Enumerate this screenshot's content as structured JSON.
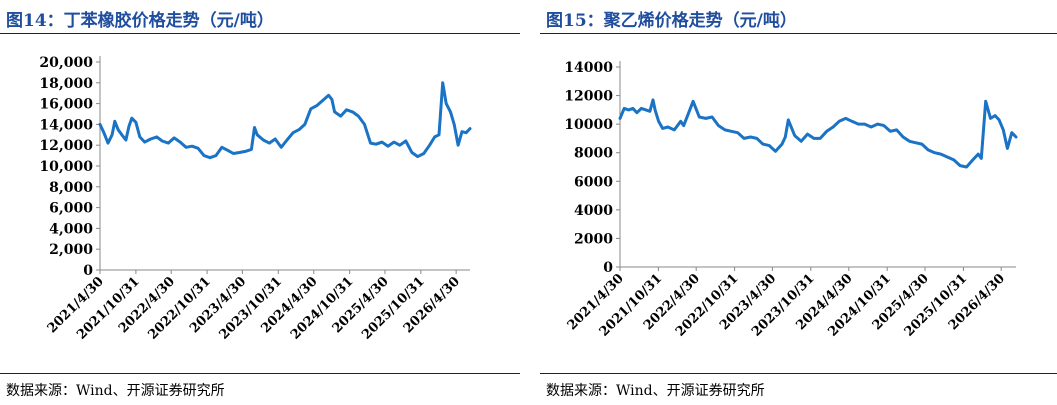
{
  "figures": [
    {
      "title": "图14：丁苯橡胶价格走势（元/吨）",
      "source": "数据来源：Wind、开源证券研究所"
    },
    {
      "title": "图15：聚乙烯价格走势（元/吨）",
      "source": "数据来源：Wind、开源证券研究所"
    }
  ],
  "chart_data": [
    {
      "type": "line",
      "title": "",
      "xlabel": "",
      "ylabel": "",
      "ylim": [
        0,
        20000
      ],
      "yticks": [
        "0",
        "2,000",
        "4,000",
        "6,000",
        "8,000",
        "10,000",
        "12,000",
        "14,000",
        "16,000",
        "18,000",
        "20,000"
      ],
      "xticks": [
        "2021/4/30",
        "2021/10/31",
        "2022/4/30",
        "2022/10/31",
        "2023/4/30",
        "2023/10/31",
        "2024/4/30",
        "2024/10/31",
        "2025/4/30",
        "2025/10/31",
        "2026/4/30"
      ],
      "xrange": [
        "2021-04-30",
        "2026-07-10"
      ],
      "grid": false,
      "color": "#1a73c4",
      "series": [
        {
          "x": [
            "2021-04-30",
            "2021-05-20",
            "2021-06-10",
            "2021-07-01",
            "2021-07-15",
            "2021-08-01",
            "2021-08-20",
            "2021-09-10",
            "2021-09-25",
            "2021-10-10",
            "2021-10-31",
            "2021-11-20",
            "2021-12-15",
            "2022-01-15",
            "2022-02-15",
            "2022-03-15",
            "2022-04-15",
            "2022-05-15",
            "2022-06-15",
            "2022-07-15",
            "2022-08-15",
            "2022-09-15",
            "2022-10-15",
            "2022-11-15",
            "2022-12-15",
            "2023-01-15",
            "2023-02-15",
            "2023-03-15",
            "2023-04-15",
            "2023-05-15",
            "2023-06-15",
            "2023-07-01",
            "2023-07-15",
            "2023-08-15",
            "2023-09-15",
            "2023-10-15",
            "2023-11-15",
            "2023-12-15",
            "2024-01-15",
            "2024-02-15",
            "2024-03-15",
            "2024-04-15",
            "2024-05-15",
            "2024-06-15",
            "2024-07-15",
            "2024-08-01",
            "2024-08-15",
            "2024-09-15",
            "2024-10-15",
            "2024-11-15",
            "2024-12-15",
            "2025-01-15",
            "2025-02-15",
            "2025-03-15",
            "2025-04-15",
            "2025-05-15",
            "2025-06-15",
            "2025-07-15",
            "2025-08-15",
            "2025-09-15",
            "2025-10-15",
            "2025-11-15",
            "2025-12-15",
            "2026-01-10",
            "2026-02-01",
            "2026-02-20",
            "2026-03-10",
            "2026-04-01",
            "2026-04-20",
            "2026-05-10",
            "2026-05-30",
            "2026-06-20",
            "2026-07-10"
          ],
          "values": [
            14000,
            13200,
            12200,
            13000,
            14300,
            13500,
            13000,
            12500,
            13800,
            14600,
            14200,
            12800,
            12300,
            12600,
            12800,
            12400,
            12200,
            12700,
            12300,
            11800,
            11900,
            11700,
            11000,
            10800,
            11000,
            11800,
            11500,
            11200,
            11300,
            11400,
            11600,
            13700,
            13000,
            12500,
            12200,
            12600,
            11800,
            12500,
            13200,
            13500,
            14000,
            15500,
            15800,
            16300,
            16800,
            16400,
            15200,
            14800,
            15400,
            15200,
            14800,
            14000,
            12200,
            12100,
            12300,
            11900,
            12300,
            12000,
            12400,
            11300,
            10900,
            11200,
            12000,
            12800,
            13000,
            18000,
            16000,
            15200,
            14000,
            12000,
            13300,
            13200,
            13600
          ]
        }
      ]
    },
    {
      "type": "line",
      "title": "",
      "xlabel": "",
      "ylabel": "",
      "ylim": [
        0,
        14000
      ],
      "yticks": [
        "0",
        "2000",
        "4000",
        "6000",
        "8000",
        "10000",
        "12000",
        "14000"
      ],
      "xticks": [
        "2021/4/30",
        "2021/10/31",
        "2022/4/30",
        "2022/10/31",
        "2023/4/30",
        "2023/10/31",
        "2024/4/30",
        "2024/10/31",
        "2025/4/30",
        "2025/10/31",
        "2026/4/30"
      ],
      "xrange": [
        "2021-04-30",
        "2026-07-10"
      ],
      "grid": false,
      "color": "#1a73c4",
      "series": [
        {
          "x": [
            "2021-04-30",
            "2021-05-20",
            "2021-06-10",
            "2021-07-01",
            "2021-07-20",
            "2021-08-10",
            "2021-09-01",
            "2021-09-20",
            "2021-10-05",
            "2021-10-15",
            "2021-11-01",
            "2021-11-20",
            "2021-12-15",
            "2022-01-15",
            "2022-02-15",
            "2022-03-01",
            "2022-03-20",
            "2022-04-15",
            "2022-05-15",
            "2022-06-15",
            "2022-07-15",
            "2022-08-15",
            "2022-09-15",
            "2022-10-15",
            "2022-11-15",
            "2022-12-15",
            "2023-01-15",
            "2023-02-15",
            "2023-03-15",
            "2023-04-15",
            "2023-05-15",
            "2023-06-15",
            "2023-07-01",
            "2023-07-15",
            "2023-08-15",
            "2023-09-15",
            "2023-10-15",
            "2023-11-15",
            "2023-12-15",
            "2024-01-15",
            "2024-02-15",
            "2024-03-15",
            "2024-04-15",
            "2024-05-15",
            "2024-06-15",
            "2024-07-15",
            "2024-08-15",
            "2024-09-15",
            "2024-10-15",
            "2024-11-15",
            "2024-12-15",
            "2025-01-15",
            "2025-02-15",
            "2025-03-15",
            "2025-04-15",
            "2025-05-15",
            "2025-06-15",
            "2025-07-15",
            "2025-08-15",
            "2025-09-15",
            "2025-10-15",
            "2025-11-15",
            "2025-12-15",
            "2026-01-10",
            "2026-01-25",
            "2026-02-15",
            "2026-03-10",
            "2026-04-01",
            "2026-04-20",
            "2026-05-10",
            "2026-05-30",
            "2026-06-20",
            "2026-07-10"
          ],
          "values": [
            10400,
            11100,
            11000,
            11100,
            10800,
            11100,
            11000,
            10900,
            11700,
            11000,
            10200,
            9700,
            9800,
            9600,
            10200,
            9900,
            10600,
            11600,
            10500,
            10400,
            10500,
            9900,
            9600,
            9500,
            9400,
            9000,
            9100,
            9000,
            8600,
            8500,
            8100,
            8600,
            9100,
            10300,
            9200,
            8800,
            9300,
            9000,
            9000,
            9500,
            9800,
            10200,
            10400,
            10200,
            10000,
            10000,
            9800,
            10000,
            9900,
            9500,
            9600,
            9100,
            8800,
            8700,
            8600,
            8200,
            8000,
            7900,
            7700,
            7500,
            7100,
            7000,
            7500,
            7900,
            7600,
            11600,
            10400,
            10600,
            10300,
            9600,
            8300,
            9400,
            9100
          ]
        }
      ]
    }
  ]
}
